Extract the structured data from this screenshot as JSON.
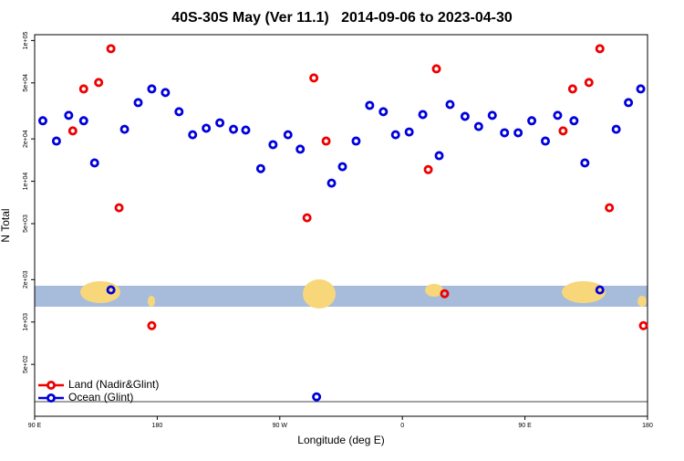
{
  "chart_data": {
    "type": "scatter",
    "title": "40S-30S May (Ver 11.1)   2014-09-06 to 2023-04-30",
    "x_label": "Longitude (deg E)",
    "y_label": "N Total",
    "xlim": [
      90,
      540
    ],
    "ylim": [
      214,
      110000
    ],
    "log_y": true,
    "legend": "bottom-left",
    "xticks": [
      {
        "value": 90,
        "label": "90 E"
      },
      {
        "value": 180,
        "label": "180"
      },
      {
        "value": 270,
        "label": "90 W"
      },
      {
        "value": 360,
        "label": "0"
      },
      {
        "value": 450,
        "label": "90 E"
      },
      {
        "value": 540,
        "label": "180"
      }
    ],
    "yticks": [
      {
        "value": 500,
        "label": "5e+02"
      },
      {
        "value": 1000,
        "label": "1e+03"
      },
      {
        "value": 2000,
        "label": "2e+03"
      },
      {
        "value": 5000,
        "label": "5e+03"
      },
      {
        "value": 10000,
        "label": "1e+04"
      },
      {
        "value": 20000,
        "label": "2e+04"
      },
      {
        "value": 50000,
        "label": "5e+04"
      },
      {
        "value": 100000,
        "label": "1e+05"
      }
    ],
    "series": [
      {
        "name": "Land (Nadir&Glint)",
        "color": "#ee0000",
        "x": [
          118,
          126,
          137,
          146,
          152,
          176,
          290,
          295,
          304,
          379,
          385,
          391,
          478,
          485,
          497,
          505,
          512,
          537
        ],
        "values": [
          22800,
          45300,
          50300,
          87500,
          6480,
          942,
          5500,
          54200,
          19300,
          12100,
          62900,
          1590,
          22800,
          45300,
          50300,
          87500,
          6480,
          942
        ]
      },
      {
        "name": "Ocean (Glint)",
        "color": "#0000dd",
        "x": [
          96,
          106,
          115,
          126,
          134,
          146,
          156,
          166,
          176,
          186,
          196,
          206,
          216,
          226,
          236,
          245,
          256,
          265,
          276,
          285,
          297,
          308,
          316,
          326,
          336,
          346,
          355,
          365,
          375,
          387,
          395,
          406,
          416,
          426,
          435,
          445,
          455,
          465,
          474,
          486,
          494,
          505,
          517,
          526,
          535
        ],
        "values": [
          26900,
          19300,
          29400,
          26900,
          13500,
          1690,
          23400,
          36200,
          45300,
          42700,
          31200,
          21400,
          23800,
          26000,
          23400,
          23100,
          12300,
          18200,
          21400,
          16900,
          294,
          9700,
          12700,
          19300,
          34600,
          31200,
          21400,
          22400,
          29800,
          15200,
          35100,
          28900,
          24500,
          29400,
          22100,
          22100,
          26900,
          19300,
          29400,
          26900,
          13500,
          1690,
          23400,
          36200,
          45300
        ]
      }
    ]
  }
}
